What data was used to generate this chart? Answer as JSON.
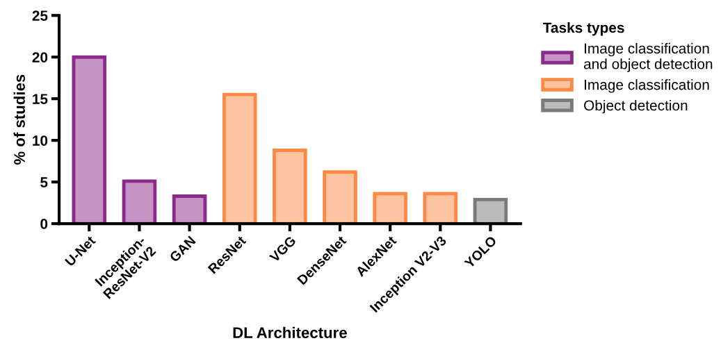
{
  "chart_data": {
    "type": "bar",
    "xlabel": "DL Architecture",
    "ylabel": "% of studies",
    "legend_title": "Tasks types",
    "legend": "top right",
    "categories": [
      "U-Net",
      "Inception-\nResNet-V2",
      "GAN",
      "ResNet",
      "VGG",
      "DenseNet",
      "AlexNet",
      "Inception V2-V3",
      "YOLO"
    ],
    "series": [
      {
        "name": "Image classification\nand object detection",
        "color": "#8b2a8a",
        "values": [
          20,
          5.1,
          3.3,
          null,
          null,
          null,
          null,
          null,
          null
        ]
      },
      {
        "name": "Image classification",
        "color": "#fc8a46",
        "values": [
          null,
          null,
          null,
          15.5,
          8.8,
          6.2,
          3.6,
          3.6,
          null
        ]
      },
      {
        "name": "Object detection",
        "color": "#7a7a7a",
        "values": [
          null,
          null,
          null,
          null,
          null,
          null,
          null,
          null,
          2.9
        ]
      }
    ],
    "ylim": [
      0,
      25
    ],
    "yticks": [
      0,
      5,
      10,
      15,
      20,
      25
    ],
    "grid": false
  }
}
